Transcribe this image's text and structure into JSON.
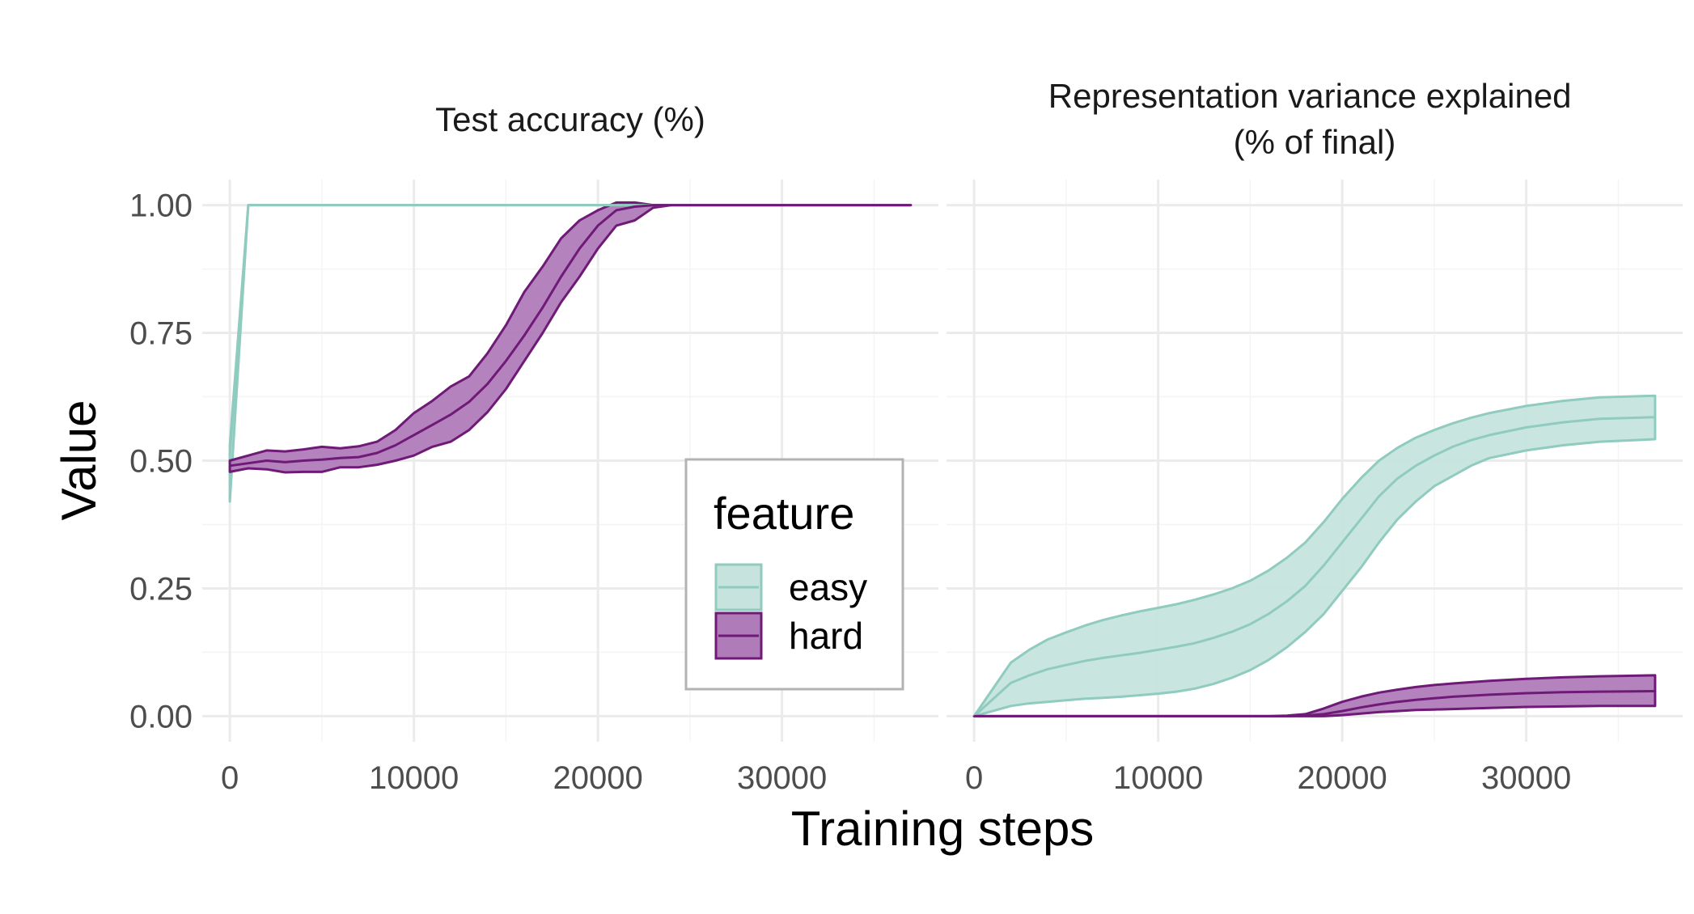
{
  "chart_data": {
    "type": "area",
    "xlabel": "Training steps",
    "ylabel": "Value",
    "xlim": [
      -1500,
      38500
    ],
    "ylim": [
      -0.05,
      1.05
    ],
    "x_ticks": [
      0,
      10000,
      20000,
      30000
    ],
    "x_tick_labels": [
      "0",
      "10000",
      "20000",
      "30000"
    ],
    "y_ticks": [
      0,
      0.25,
      0.5,
      0.75,
      1.0
    ],
    "y_tick_labels": [
      "0.00",
      "0.25",
      "0.50",
      "0.75",
      "1.00"
    ],
    "grid": true,
    "legend": {
      "title": "feature",
      "position": "inside-bottom-right of left panel",
      "entries": [
        {
          "label": "easy",
          "fill": "#c6e4dd",
          "line": "#8fcbbe"
        },
        {
          "label": "hard",
          "fill": "#b07bb9",
          "line": "#6e1a76"
        }
      ]
    },
    "panels": [
      {
        "title_lines": [
          "Test accuracy (%)"
        ],
        "series": [
          {
            "name": "easy",
            "x": [
              0,
              1000,
              37000
            ],
            "mean": [
              0.51,
              1.0,
              1.0
            ],
            "lower": [
              0.42,
              1.0,
              1.0
            ],
            "upper": [
              0.53,
              1.0,
              1.0
            ]
          },
          {
            "name": "hard",
            "x": [
              0,
              1000,
              2000,
              3000,
              4000,
              5000,
              6000,
              7000,
              8000,
              9000,
              10000,
              11000,
              12000,
              13000,
              14000,
              15000,
              16000,
              17000,
              18000,
              19000,
              20000,
              21000,
              22000,
              23000,
              24000,
              37000
            ],
            "mean": [
              0.49,
              0.495,
              0.5,
              0.497,
              0.5,
              0.502,
              0.505,
              0.507,
              0.515,
              0.53,
              0.55,
              0.57,
              0.59,
              0.615,
              0.65,
              0.695,
              0.745,
              0.8,
              0.86,
              0.915,
              0.96,
              0.99,
              0.997,
              1.0,
              1.0,
              1.0
            ],
            "lower": [
              0.478,
              0.485,
              0.483,
              0.477,
              0.478,
              0.478,
              0.487,
              0.487,
              0.492,
              0.5,
              0.51,
              0.527,
              0.537,
              0.56,
              0.595,
              0.64,
              0.695,
              0.75,
              0.81,
              0.86,
              0.915,
              0.96,
              0.97,
              0.995,
              1.0,
              1.0
            ],
            "upper": [
              0.5,
              0.51,
              0.52,
              0.518,
              0.522,
              0.527,
              0.524,
              0.528,
              0.537,
              0.56,
              0.593,
              0.617,
              0.645,
              0.665,
              0.71,
              0.765,
              0.83,
              0.88,
              0.935,
              0.97,
              0.99,
              1.005,
              1.005,
              1.0,
              1.0,
              1.0
            ]
          }
        ]
      },
      {
        "title_lines": [
          "Representation variance explained",
          "(% of final)"
        ],
        "series": [
          {
            "name": "easy",
            "x": [
              0,
              2000,
              3000,
              4000,
              5000,
              6000,
              7000,
              8000,
              9000,
              10000,
              11000,
              12000,
              13000,
              14000,
              15000,
              16000,
              17000,
              18000,
              19000,
              20000,
              21000,
              22000,
              23000,
              24000,
              25000,
              26000,
              27000,
              28000,
              30000,
              32000,
              34000,
              37000
            ],
            "mean": [
              0.0,
              0.065,
              0.08,
              0.092,
              0.1,
              0.108,
              0.114,
              0.119,
              0.124,
              0.13,
              0.136,
              0.143,
              0.153,
              0.165,
              0.18,
              0.2,
              0.225,
              0.255,
              0.295,
              0.34,
              0.385,
              0.43,
              0.465,
              0.49,
              0.51,
              0.527,
              0.54,
              0.55,
              0.565,
              0.575,
              0.582,
              0.585
            ],
            "lower": [
              0.0,
              0.02,
              0.025,
              0.028,
              0.031,
              0.034,
              0.036,
              0.038,
              0.041,
              0.044,
              0.048,
              0.054,
              0.063,
              0.075,
              0.09,
              0.11,
              0.135,
              0.165,
              0.2,
              0.245,
              0.29,
              0.34,
              0.385,
              0.42,
              0.45,
              0.47,
              0.49,
              0.505,
              0.52,
              0.53,
              0.537,
              0.542
            ],
            "upper": [
              0.0,
              0.105,
              0.13,
              0.15,
              0.164,
              0.177,
              0.188,
              0.197,
              0.205,
              0.212,
              0.219,
              0.228,
              0.238,
              0.25,
              0.265,
              0.285,
              0.31,
              0.34,
              0.38,
              0.425,
              0.465,
              0.5,
              0.525,
              0.545,
              0.56,
              0.573,
              0.584,
              0.593,
              0.607,
              0.617,
              0.624,
              0.627
            ]
          },
          {
            "name": "hard",
            "x": [
              0,
              10000,
              15000,
              16000,
              17000,
              18000,
              19000,
              20000,
              21000,
              22000,
              23000,
              24000,
              25000,
              26000,
              28000,
              30000,
              32000,
              34000,
              37000
            ],
            "mean": [
              0.0,
              0.0,
              0.0,
              0.0,
              0.0,
              0.001,
              0.004,
              0.01,
              0.017,
              0.023,
              0.028,
              0.032,
              0.035,
              0.038,
              0.042,
              0.045,
              0.047,
              0.048,
              0.049
            ],
            "lower": [
              0.0,
              0.0,
              0.0,
              0.0,
              0.0,
              0.0,
              0.0,
              0.002,
              0.005,
              0.008,
              0.01,
              0.012,
              0.013,
              0.014,
              0.016,
              0.018,
              0.019,
              0.02,
              0.02
            ],
            "upper": [
              0.0,
              0.0,
              0.0,
              0.0,
              0.001,
              0.004,
              0.015,
              0.028,
              0.038,
              0.046,
              0.052,
              0.057,
              0.061,
              0.064,
              0.069,
              0.073,
              0.076,
              0.078,
              0.08
            ]
          }
        ]
      }
    ]
  }
}
